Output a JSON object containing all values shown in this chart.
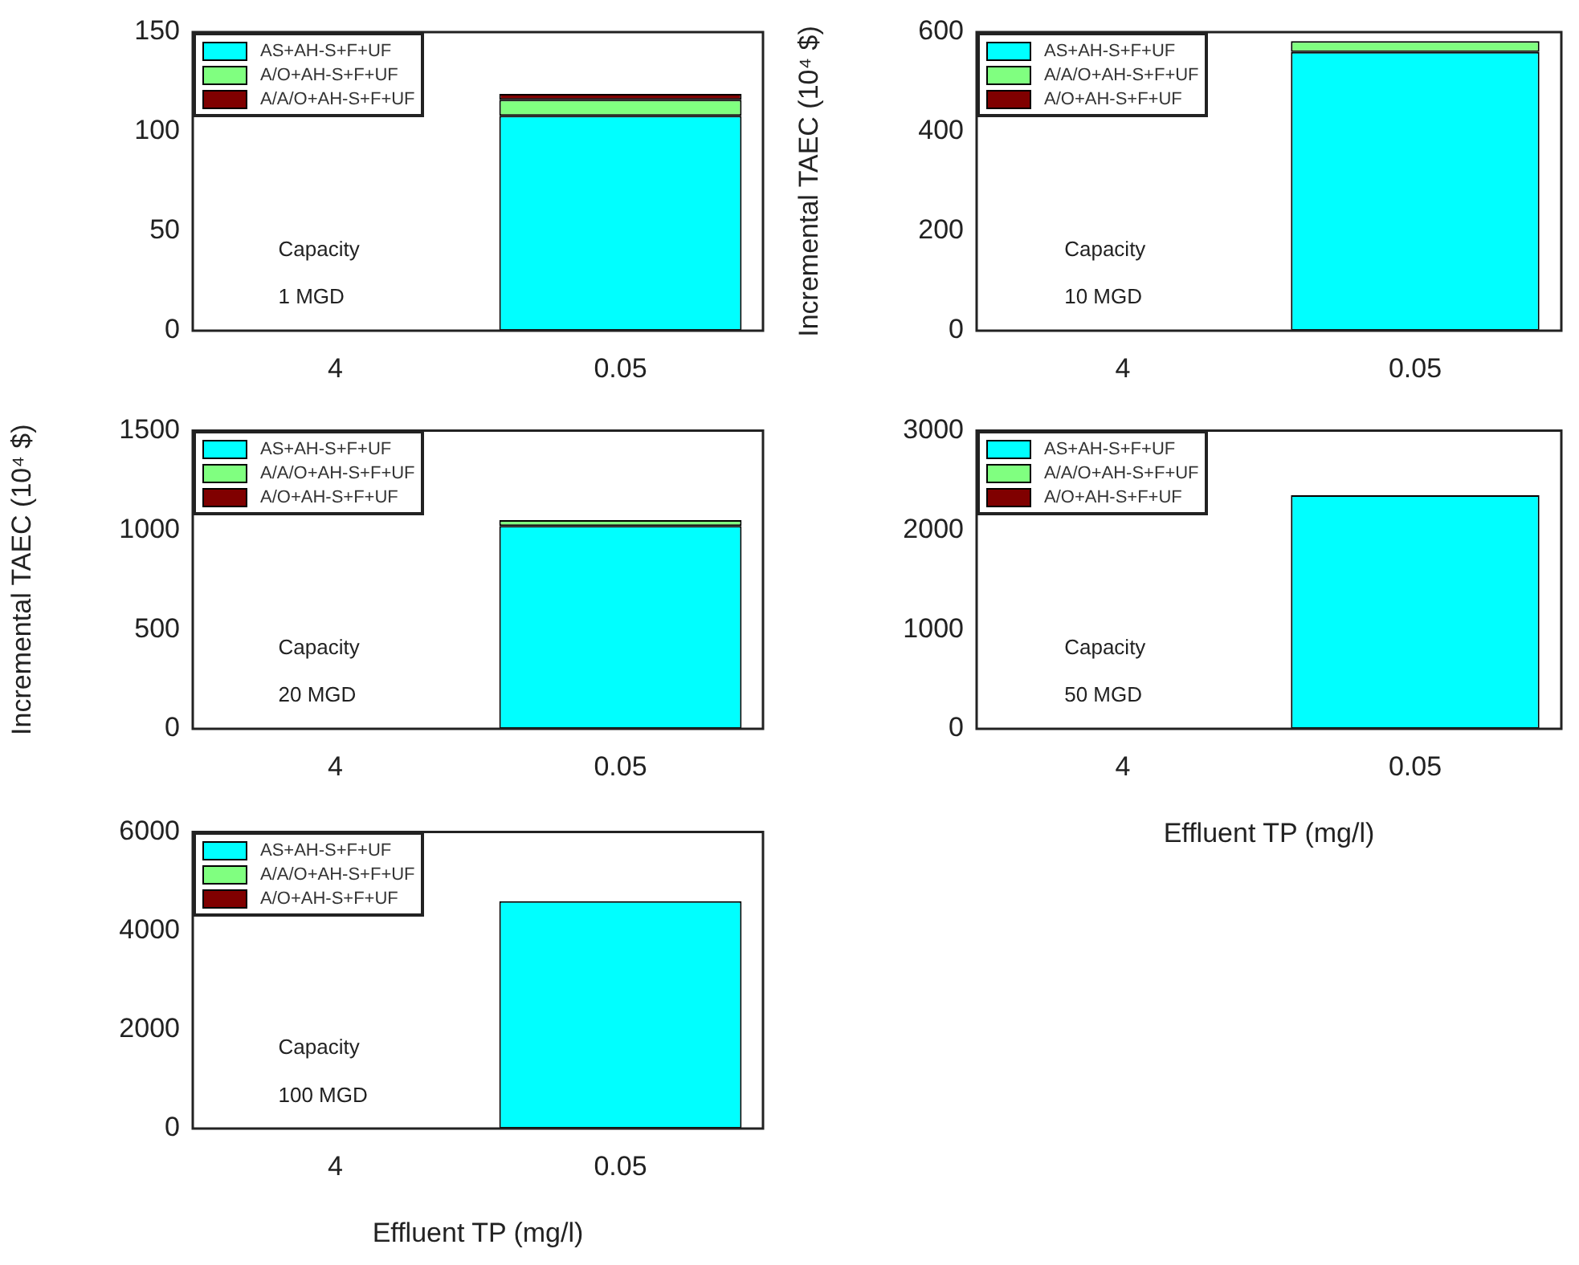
{
  "chart_data": [
    {
      "type": "bar",
      "stacked": true,
      "categories": [
        "4",
        "0.05"
      ],
      "ylim": [
        0,
        150
      ],
      "yticks": [
        0,
        50,
        100,
        150
      ],
      "grid": false,
      "legend": "top left",
      "annotations": [
        "Capacity",
        "1 MGD"
      ],
      "series": [
        {
          "name": "AS+AH-S+F+UF",
          "color": "#00ffff",
          "values": [
            null,
            108
          ]
        },
        {
          "name": "A/O+AH-S+F+UF",
          "color": "#80ff80",
          "values": [
            null,
            8
          ]
        },
        {
          "name": "A/A/O+AH-S+F+UF",
          "color": "#800000",
          "values": [
            null,
            3
          ]
        }
      ]
    },
    {
      "type": "bar",
      "stacked": true,
      "categories": [
        "4",
        "0.05"
      ],
      "ylim": [
        0,
        600
      ],
      "yticks": [
        0,
        200,
        400,
        600
      ],
      "grid": false,
      "legend": "top left",
      "ylabel": "Incremental TAEC (10⁴ $)",
      "annotations": [
        "Capacity",
        "10 MGD"
      ],
      "series": [
        {
          "name": "AS+AH-S+F+UF",
          "color": "#00ffff",
          "values": [
            null,
            560
          ]
        },
        {
          "name": "A/A/O+AH-S+F+UF",
          "color": "#80ff80",
          "values": [
            null,
            22
          ]
        },
        {
          "name": "A/O+AH-S+F+UF",
          "color": "#800000",
          "values": [
            null,
            null
          ]
        }
      ]
    },
    {
      "type": "bar",
      "stacked": true,
      "categories": [
        "4",
        "0.05"
      ],
      "ylim": [
        0,
        1500
      ],
      "yticks": [
        0,
        500,
        1000,
        1500
      ],
      "grid": false,
      "legend": "top left",
      "ylabel": "Incremental TAEC (10⁴ $)",
      "annotations": [
        "Capacity",
        "20 MGD"
      ],
      "series": [
        {
          "name": "AS+AH-S+F+UF",
          "color": "#00ffff",
          "values": [
            null,
            1020
          ]
        },
        {
          "name": "A/A/O+AH-S+F+UF",
          "color": "#80ff80",
          "values": [
            null,
            30
          ]
        },
        {
          "name": "A/O+AH-S+F+UF",
          "color": "#800000",
          "values": [
            null,
            null
          ]
        }
      ]
    },
    {
      "type": "bar",
      "stacked": true,
      "categories": [
        "4",
        "0.05"
      ],
      "ylim": [
        0,
        3000
      ],
      "yticks": [
        0,
        1000,
        2000,
        3000
      ],
      "grid": false,
      "legend": "top left",
      "xlabel": "Effluent TP (mg/l)",
      "annotations": [
        "Capacity",
        "50 MGD"
      ],
      "series": [
        {
          "name": "AS+AH-S+F+UF",
          "color": "#00ffff",
          "values": [
            null,
            2350
          ]
        },
        {
          "name": "A/A/O+AH-S+F+UF",
          "color": "#80ff80",
          "values": [
            null,
            null
          ]
        },
        {
          "name": "A/O+AH-S+F+UF",
          "color": "#800000",
          "values": [
            null,
            null
          ]
        }
      ]
    },
    {
      "type": "bar",
      "stacked": true,
      "categories": [
        "4",
        "0.05"
      ],
      "ylim": [
        0,
        6000
      ],
      "yticks": [
        0,
        2000,
        4000,
        6000
      ],
      "grid": false,
      "legend": "top left",
      "xlabel": "Effluent TP (mg/l)",
      "annotations": [
        "Capacity",
        "100 MGD"
      ],
      "series": [
        {
          "name": "AS+AH-S+F+UF",
          "color": "#00ffff",
          "values": [
            null,
            4600
          ]
        },
        {
          "name": "A/A/O+AH-S+F+UF",
          "color": "#80ff80",
          "values": [
            null,
            null
          ]
        },
        {
          "name": "A/O+AH-S+F+UF",
          "color": "#800000",
          "values": [
            null,
            null
          ]
        }
      ]
    }
  ]
}
